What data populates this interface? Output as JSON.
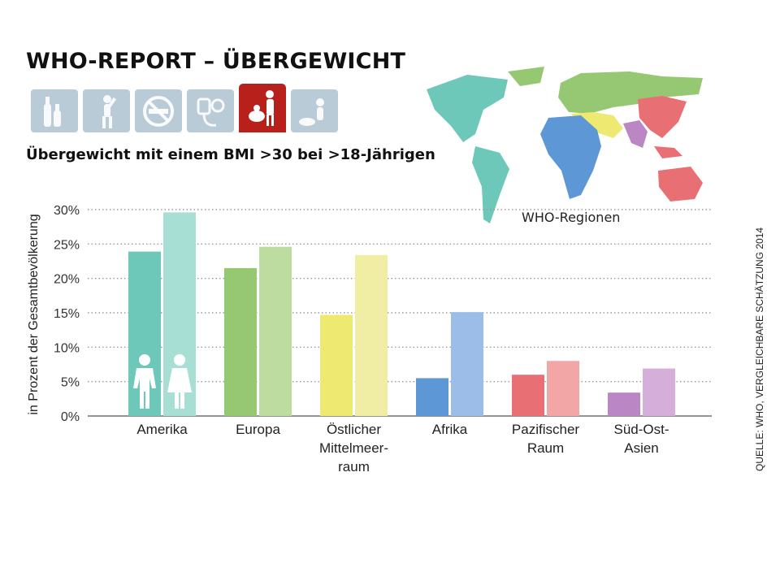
{
  "header": {
    "title": "WHO-REPORT – ÜBERGEWICHT",
    "subtitle": "Übergewicht mit einem BMI >30 bei >18-Jährigen"
  },
  "icons": [
    "alcohol-icon",
    "physical-activity-icon",
    "no-smoking-icon",
    "blood-pressure-icon",
    "obesity-icon",
    "disease-icon"
  ],
  "source": "QUELLE: WHO, VERGLEICHBARE SCHÄTZUNG 2014",
  "map": {
    "label": "WHO-Regionen"
  },
  "chart_data": {
    "type": "bar",
    "ylabel": "in Prozent der Gesamtbevölkerung",
    "ylim": [
      0,
      30
    ],
    "yticks": [
      "0%",
      "5%",
      "10%",
      "15%",
      "20%",
      "25%",
      "30%"
    ],
    "grid": true,
    "categories": [
      [
        "Amerika"
      ],
      [
        "Europa"
      ],
      [
        "Östlicher",
        "Mittelmeer-",
        "raum"
      ],
      [
        "Afrika"
      ],
      [
        "Pazifischer",
        "Raum"
      ],
      [
        "Süd-Ost-",
        "Asien"
      ]
    ],
    "series": [
      {
        "values": [
          23.9,
          21.5,
          14.7,
          5.5,
          6.0,
          3.4
        ],
        "colors": [
          "#6ec8b9",
          "#96c873",
          "#ede971",
          "#5d97d6",
          "#e86f74",
          "#ba86c4"
        ]
      },
      {
        "values": [
          29.6,
          24.6,
          23.4,
          15.1,
          8.0,
          6.9
        ],
        "colors": [
          "#a8dfd4",
          "#bddc9f",
          "#f0eea5",
          "#9cbde8",
          "#f2a6a6",
          "#d5aed9"
        ]
      }
    ],
    "series_symbols": [
      "male-figure-icon",
      "female-figure-icon"
    ]
  }
}
